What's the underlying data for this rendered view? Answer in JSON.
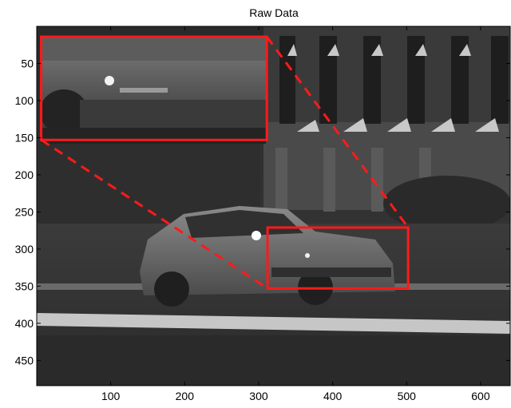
{
  "title": "Raw Data",
  "image_description": "",
  "axes": {
    "x": {
      "min": 0,
      "max": 640,
      "ticks": [
        100,
        200,
        300,
        400,
        500,
        600
      ]
    },
    "y": {
      "min": 0,
      "max": 484,
      "reversed": true,
      "ticks": [
        50,
        100,
        150,
        200,
        250,
        300,
        350,
        400,
        450
      ]
    }
  },
  "annotations": {
    "color": "#ff1a1a",
    "region_box_data": {
      "x0": 312,
      "y0": 271,
      "x1": 502,
      "y1": 353
    },
    "inset_box_data": {
      "x0": 6,
      "y0": 14,
      "x1": 311,
      "y1": 153
    },
    "connector_style": "dashed"
  },
  "colors": {
    "frame": "#000000",
    "background": "#ffffff"
  }
}
